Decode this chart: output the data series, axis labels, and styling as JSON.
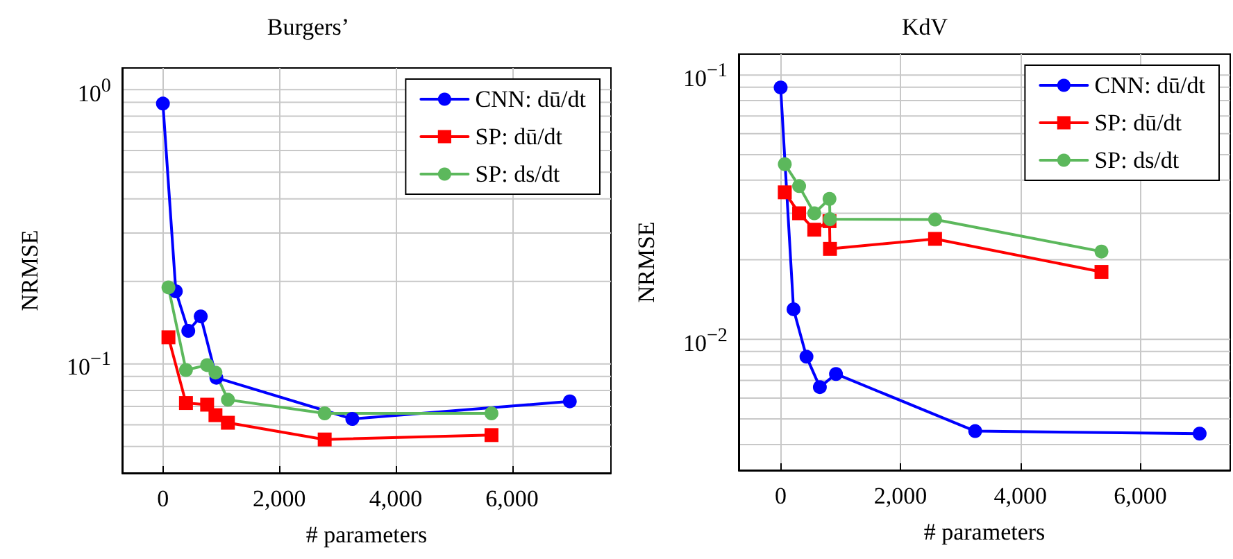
{
  "chart_data": [
    {
      "type": "line",
      "title": "Burgers’",
      "xlabel": "# parameters",
      "ylabel": "NRMSE",
      "log": "y",
      "grid": true,
      "legend": "top right",
      "xlim": [
        -700,
        7700
      ],
      "xticks": [
        0,
        {
          "value": 2000,
          "label": "2,000"
        },
        {
          "value": 4000,
          "label": "4,000"
        },
        {
          "value": 6000,
          "label": "6,000"
        }
      ],
      "ylim": [
        0.04,
        1.2
      ],
      "yticks": [
        {
          "value": 0.05,
          "label": null
        },
        {
          "value": 0.06,
          "label": null
        },
        {
          "value": 0.07,
          "label": null
        },
        {
          "value": 0.08,
          "label": null
        },
        {
          "value": 0.09,
          "label": null
        },
        {
          "value": 0.1,
          "label": "10$^{−1}$"
        },
        {
          "value": 0.2,
          "label": null
        },
        {
          "value": 0.3,
          "label": null
        },
        {
          "value": 0.4,
          "label": null
        },
        {
          "value": 0.5,
          "label": null
        },
        {
          "value": 0.6,
          "label": null
        },
        {
          "value": 0.7,
          "label": null
        },
        {
          "value": 0.8,
          "label": null
        },
        {
          "value": 0.9,
          "label": null
        },
        {
          "value": 1,
          "label": "10$^{0}$"
        }
      ],
      "series": [
        {
          "name": "CNN: dū/dt",
          "color": "#0000ff",
          "marker": "circle",
          "x": [
            0,
            222,
            436,
            650,
            919,
            3255,
            6993
          ],
          "values": [
            0.89,
            0.184,
            0.132,
            0.149,
            0.089,
            0.063,
            0.073
          ]
        },
        {
          "name": "SP: dū/dt",
          "color": "#ff0000",
          "marker": "square",
          "x": [
            95,
            396,
            760,
            903,
            1117,
            2780,
            5647
          ],
          "values": [
            0.125,
            0.072,
            0.071,
            0.065,
            0.061,
            0.053,
            0.055
          ]
        },
        {
          "name": "SP: ds/dt",
          "color": "#5cb85c",
          "marker": "circle",
          "x": [
            95,
            396,
            760,
            903,
            1117,
            2780,
            5647
          ],
          "values": [
            0.19,
            0.095,
            0.099,
            0.093,
            0.074,
            0.066,
            0.066
          ]
        }
      ]
    },
    {
      "type": "line",
      "title": "KdV",
      "xlabel": "# parameters",
      "ylabel": "NRMSE",
      "log": "y",
      "grid": true,
      "legend": "top right",
      "xlim": [
        -700,
        7500
      ],
      "xticks": [
        0,
        {
          "value": 2000,
          "label": "2,000"
        },
        {
          "value": 4000,
          "label": "4,000"
        },
        {
          "value": 6000,
          "label": "6,000"
        }
      ],
      "ylim": [
        0.0032,
        0.12
      ],
      "yticks": [
        {
          "value": 0.004,
          "label": null
        },
        {
          "value": 0.005,
          "label": null
        },
        {
          "value": 0.006,
          "label": null
        },
        {
          "value": 0.007,
          "label": null
        },
        {
          "value": 0.008,
          "label": null
        },
        {
          "value": 0.009,
          "label": null
        },
        {
          "value": 0.01,
          "label": "10$^{−2}$"
        },
        {
          "value": 0.02,
          "label": null
        },
        {
          "value": 0.03,
          "label": null
        },
        {
          "value": 0.04,
          "label": null
        },
        {
          "value": 0.05,
          "label": null
        },
        {
          "value": 0.06,
          "label": null
        },
        {
          "value": 0.07,
          "label": null
        },
        {
          "value": 0.08,
          "label": null
        },
        {
          "value": 0.09,
          "label": null
        },
        {
          "value": 0.1,
          "label": "10$^{−1}$"
        }
      ],
      "series": [
        {
          "name": "CNN: dū/dt",
          "color": "#0000ff",
          "marker": "circle",
          "x": [
            0,
            215,
            431,
            654,
            923,
            3245,
            6990
          ],
          "values": [
            0.0897,
            0.013,
            0.0086,
            0.0066,
            0.0074,
            0.0045,
            0.0044
          ]
        },
        {
          "name": "SP: dū/dt",
          "color": "#ff0000",
          "marker": "square",
          "x": [
            69,
            308,
            561,
            815,
            823,
            2576,
            5352
          ],
          "values": [
            0.036,
            0.03,
            0.026,
            0.028,
            0.022,
            0.024,
            0.018
          ]
        },
        {
          "name": "SP: ds/dt",
          "color": "#5cb85c",
          "marker": "circle",
          "x": [
            69,
            308,
            561,
            815,
            823,
            2576,
            5352
          ],
          "values": [
            0.046,
            0.038,
            0.03,
            0.034,
            0.0285,
            0.0284,
            0.0215
          ]
        }
      ]
    }
  ]
}
